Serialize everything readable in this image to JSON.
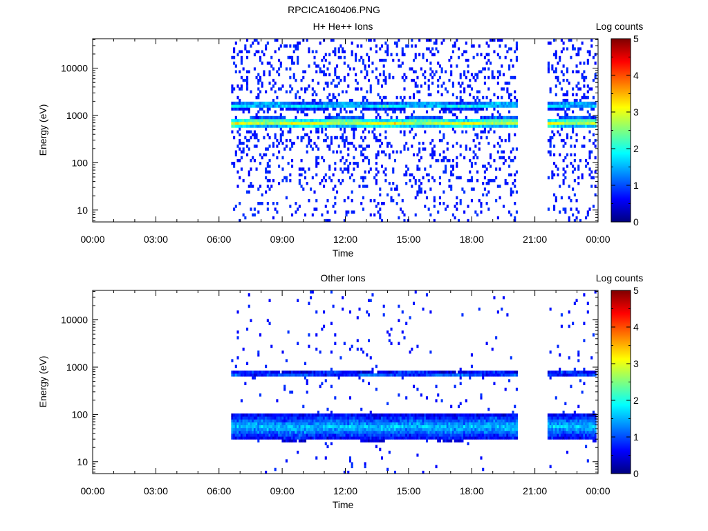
{
  "figure_title": "RPCICA160406.PNG",
  "colorbar": {
    "label": "Log counts",
    "min": 0,
    "max": 5,
    "ticks": [
      "0",
      "1",
      "2",
      "3",
      "4",
      "5"
    ],
    "colors": [
      "#00007f",
      "#0000ff",
      "#007fff",
      "#00ffff",
      "#7fff7f",
      "#ffff00",
      "#ff7f00",
      "#ff0000",
      "#7f0000"
    ]
  },
  "chart_data": [
    {
      "type": "heatmap",
      "title": "H+ He++ Ions",
      "xlabel": "Time",
      "ylabel": "Energy (eV)",
      "x_ticks": [
        "00:00",
        "03:00",
        "06:00",
        "09:00",
        "12:00",
        "15:00",
        "18:00",
        "21:00",
        "00:00"
      ],
      "x_range_hours": [
        0,
        24
      ],
      "y_ticks": [
        "10",
        "100",
        "1000",
        "10000"
      ],
      "y_tick_values": [
        10,
        100,
        1000,
        10000
      ],
      "y_range": [
        5.6,
        42000
      ],
      "y_scale": "log",
      "colorbar_label": "Log counts",
      "data_intervals_hours": [
        [
          6.6,
          20.2
        ],
        [
          21.6,
          23.95
        ]
      ],
      "bands": [
        {
          "center_eV": 700,
          "log_width": 0.07,
          "level": 3.1
        },
        {
          "center_eV": 1650,
          "log_width": 0.05,
          "level": 2.0
        }
      ],
      "background": {
        "density": 0.16,
        "level": 0.6
      }
    },
    {
      "type": "heatmap",
      "title": "Other Ions",
      "xlabel": "Time",
      "ylabel": "Energy (eV)",
      "x_ticks": [
        "00:00",
        "03:00",
        "06:00",
        "09:00",
        "12:00",
        "15:00",
        "18:00",
        "21:00",
        "00:00"
      ],
      "x_range_hours": [
        0,
        24
      ],
      "y_ticks": [
        "10",
        "100",
        "1000",
        "10000"
      ],
      "y_tick_values": [
        10,
        100,
        1000,
        10000
      ],
      "y_range": [
        5.6,
        42000
      ],
      "y_scale": "log",
      "colorbar_label": "Log counts",
      "data_intervals_hours": [
        [
          6.6,
          20.2
        ],
        [
          21.6,
          23.95
        ]
      ],
      "bands": [
        {
          "center_eV": 720,
          "log_width": 0.035,
          "level": 1.3
        },
        {
          "center_eV": 55,
          "log_width": 0.18,
          "level": 1.6
        }
      ],
      "background": {
        "density": 0.025,
        "level": 0.6
      }
    }
  ]
}
